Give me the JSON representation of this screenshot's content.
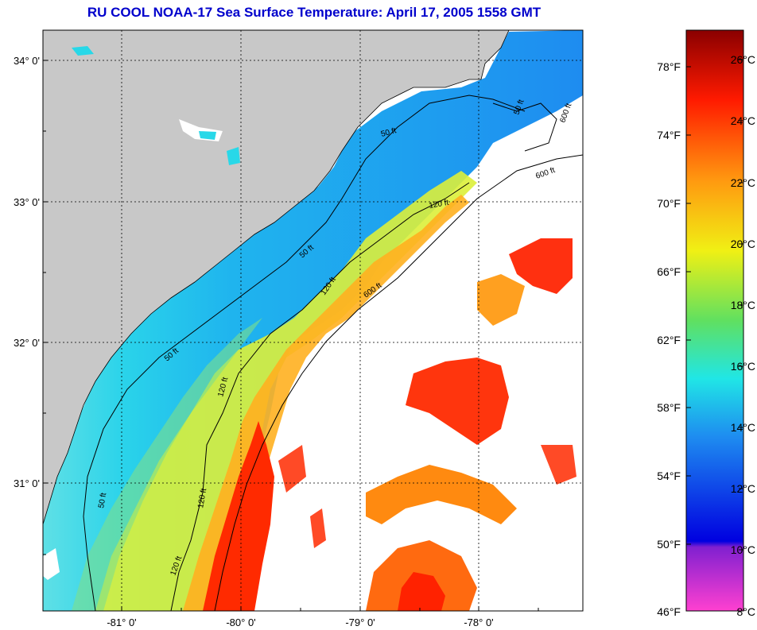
{
  "title": "RU COOL  NOAA-17  Sea Surface Temperature:  April 17, 2005 1558 GMT",
  "map": {
    "lat_ticks": [
      "34° 0'",
      "33° 0'",
      "32° 0'",
      "31° 0'"
    ],
    "lon_ticks": [
      "-81° 0'",
      "-80° 0'",
      "-79° 0'",
      "-78° 0'"
    ],
    "contour_labels": [
      "50 ft",
      "50 ft",
      "50 ft",
      "50 ft",
      "50 ft",
      "120 ft",
      "120 ft",
      "120 ft",
      "120 ft",
      "120 ft",
      "600 ft",
      "600 ft",
      "600 ft"
    ],
    "colors": {
      "land": "#c8c8c8",
      "cloud": "#ffffff",
      "cold": "#1e8cf0",
      "mid": "#28e6e6",
      "warm": "#f0f014",
      "hot": "#ff1e00"
    }
  },
  "colorbar": {
    "fahrenheit_labels": [
      "78°F",
      "74°F",
      "70°F",
      "66°F",
      "62°F",
      "58°F",
      "54°F",
      "50°F",
      "46°F"
    ],
    "celsius_labels": [
      "26°C",
      "24°C",
      "22°C",
      "20°C",
      "18°C",
      "16°C",
      "14°C",
      "12°C",
      "10°C",
      "8°C"
    ]
  }
}
